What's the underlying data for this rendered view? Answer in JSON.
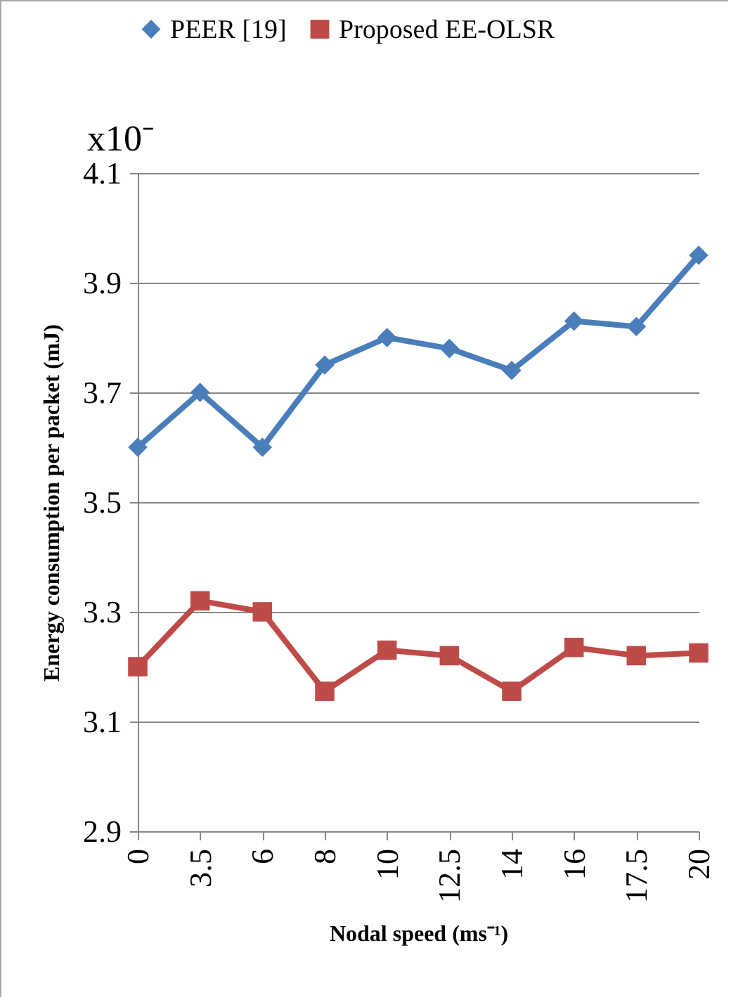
{
  "chart_data": {
    "type": "line",
    "xlabel": "Nodal speed (ms⁻¹)",
    "ylabel": "Energy consumption per packet (mJ)",
    "annotations": [
      "x10⁻"
    ],
    "categories": [
      "0",
      "3.5",
      "6",
      "8",
      "10",
      "12.5",
      "14",
      "16",
      "17.5",
      "20"
    ],
    "series": [
      {
        "name": "PEER [19]",
        "color": "#4a7ebb",
        "marker": "diamond",
        "values": [
          3.6,
          3.7,
          3.6,
          3.75,
          3.8,
          3.78,
          3.74,
          3.83,
          3.82,
          3.95
        ]
      },
      {
        "name": "Proposed EE-OLSR",
        "color": "#be4b48",
        "marker": "square",
        "values": [
          3.2,
          3.32,
          3.3,
          3.155,
          3.23,
          3.22,
          3.155,
          3.235,
          3.22,
          3.225
        ]
      }
    ],
    "ylim": [
      2.9,
      4.1
    ],
    "yticks": [
      2.9,
      3.1,
      3.3,
      3.5,
      3.7,
      3.9,
      4.1
    ],
    "grid": "y",
    "legend": "top",
    "line_style": "solid"
  }
}
